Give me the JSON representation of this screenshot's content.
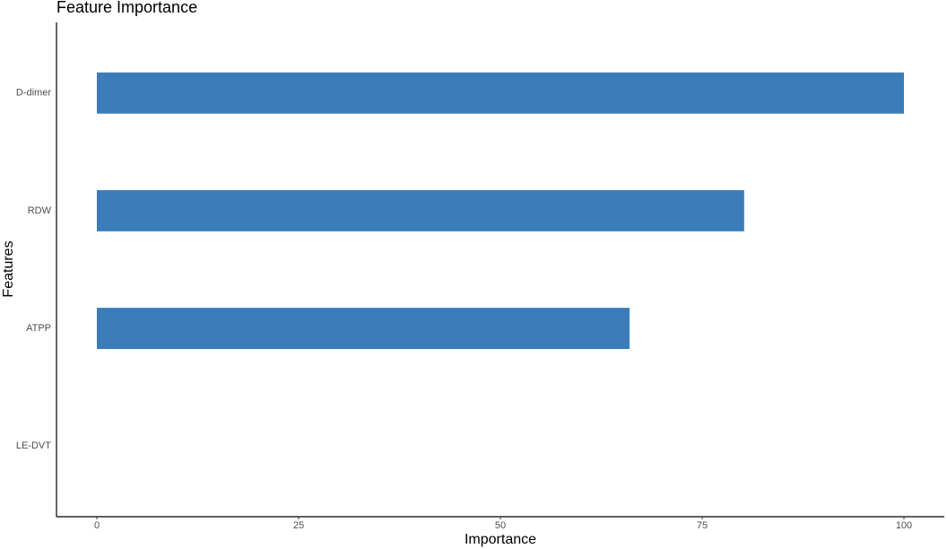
{
  "chart_data": {
    "type": "barh",
    "title": "Feature Importance",
    "x_label": "Importance",
    "y_label": "Features",
    "categories": [
      "D-dimer",
      "RDW",
      "ATPP",
      "LE-DVT"
    ],
    "values": [
      100,
      80.2,
      66,
      0
    ],
    "color": "#3a7db8",
    "xlim": [
      -5,
      105
    ],
    "xticks": [
      0,
      25,
      50,
      75,
      100
    ],
    "grid": false
  }
}
